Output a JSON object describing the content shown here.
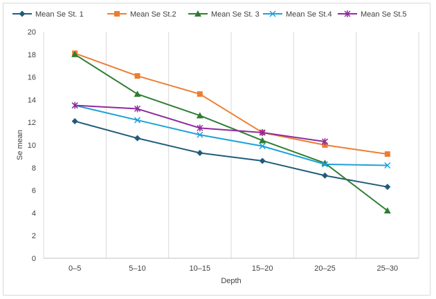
{
  "chart_data": {
    "type": "line",
    "categories": [
      "0–5",
      "5–10",
      "10–15",
      "15–20",
      "20–25",
      "25–30"
    ],
    "xlabel": "Depth",
    "ylabel": "Se mean",
    "ylim": [
      0,
      20
    ],
    "yticks": [
      0,
      2,
      4,
      6,
      8,
      10,
      12,
      14,
      16,
      18,
      20
    ],
    "grid": "vertical",
    "legend_position": "top",
    "series": [
      {
        "name": "Mean Se St. 1",
        "color": "#1f5c7a",
        "marker": "diamond",
        "values": [
          12.1,
          10.6,
          9.3,
          8.6,
          7.3,
          6.3
        ]
      },
      {
        "name": "Mean Se St.2",
        "color": "#ed7d31",
        "marker": "square",
        "values": [
          18.1,
          16.1,
          14.5,
          11.1,
          10.0,
          9.2
        ]
      },
      {
        "name": "Mean Se St. 3",
        "color": "#2e7d32",
        "marker": "triangle",
        "values": [
          18.0,
          14.5,
          12.6,
          10.4,
          8.4,
          4.2
        ]
      },
      {
        "name": "Mean Se St.4",
        "color": "#1ba1d8",
        "marker": "x",
        "values": [
          13.5,
          12.2,
          10.9,
          9.9,
          8.3,
          8.2
        ]
      },
      {
        "name": "Mean Se St.5",
        "color": "#8e2a9e",
        "marker": "star",
        "values": [
          13.5,
          13.2,
          11.5,
          11.1,
          10.3,
          null
        ]
      }
    ]
  }
}
